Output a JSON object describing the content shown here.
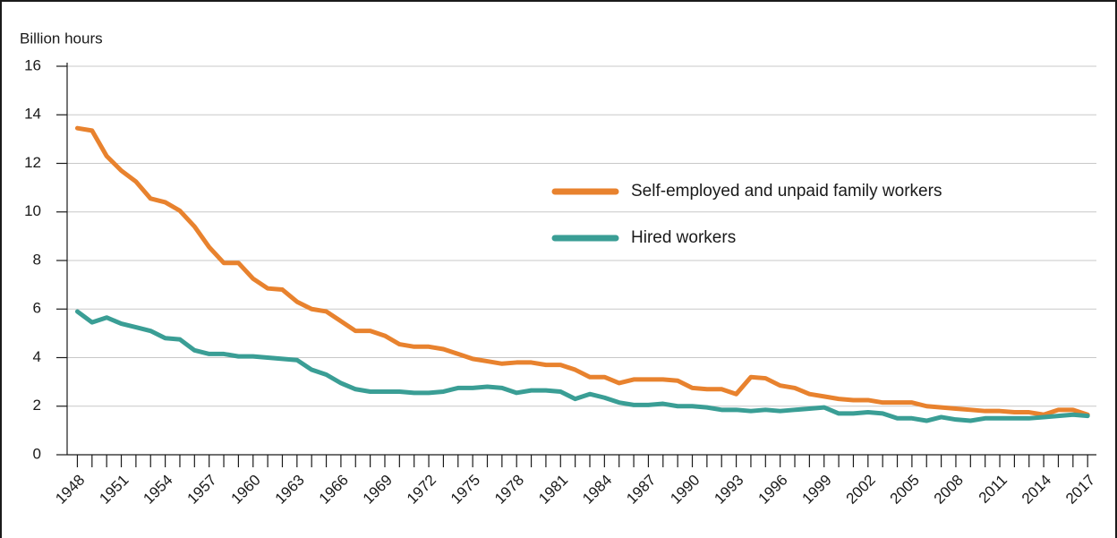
{
  "chart_data": {
    "type": "line",
    "y_label": "Billion hours",
    "x": [
      1948,
      1949,
      1950,
      1951,
      1952,
      1953,
      1954,
      1955,
      1956,
      1957,
      1958,
      1959,
      1960,
      1961,
      1962,
      1963,
      1964,
      1965,
      1966,
      1967,
      1968,
      1969,
      1970,
      1971,
      1972,
      1973,
      1974,
      1975,
      1976,
      1977,
      1978,
      1979,
      1980,
      1981,
      1982,
      1983,
      1984,
      1985,
      1986,
      1987,
      1988,
      1989,
      1990,
      1991,
      1992,
      1993,
      1994,
      1995,
      1996,
      1997,
      1998,
      1999,
      2000,
      2001,
      2002,
      2003,
      2004,
      2005,
      2006,
      2007,
      2008,
      2009,
      2010,
      2011,
      2012,
      2013,
      2014,
      2015,
      2016,
      2017
    ],
    "series": [
      {
        "name": "Self-employed and unpaid family workers",
        "color": "#e8822e",
        "values": [
          13.45,
          13.35,
          12.3,
          11.7,
          11.25,
          10.55,
          10.4,
          10.05,
          9.4,
          8.55,
          7.9,
          7.9,
          7.25,
          6.85,
          6.8,
          6.3,
          6.0,
          5.9,
          5.5,
          5.1,
          5.1,
          4.9,
          4.55,
          4.45,
          4.45,
          4.35,
          4.15,
          3.95,
          3.85,
          3.75,
          3.8,
          3.8,
          3.7,
          3.7,
          3.5,
          3.2,
          3.2,
          2.95,
          3.1,
          3.1,
          3.1,
          3.05,
          2.75,
          2.7,
          2.7,
          2.5,
          3.2,
          3.15,
          2.85,
          2.75,
          2.5,
          2.4,
          2.3,
          2.25,
          2.25,
          2.15,
          2.15,
          2.15,
          2.0,
          1.95,
          1.9,
          1.85,
          1.8,
          1.8,
          1.75,
          1.75,
          1.65,
          1.85,
          1.85,
          1.65
        ]
      },
      {
        "name": "Hired workers",
        "color": "#3a9e95",
        "values": [
          5.9,
          5.45,
          5.65,
          5.4,
          5.25,
          5.1,
          4.8,
          4.75,
          4.3,
          4.15,
          4.15,
          4.05,
          4.05,
          4.0,
          3.95,
          3.9,
          3.5,
          3.3,
          2.95,
          2.7,
          2.6,
          2.6,
          2.6,
          2.55,
          2.55,
          2.6,
          2.75,
          2.75,
          2.8,
          2.75,
          2.55,
          2.65,
          2.65,
          2.6,
          2.3,
          2.5,
          2.35,
          2.15,
          2.05,
          2.05,
          2.1,
          2.0,
          2.0,
          1.95,
          1.85,
          1.85,
          1.8,
          1.85,
          1.8,
          1.85,
          1.9,
          1.95,
          1.7,
          1.7,
          1.75,
          1.7,
          1.5,
          1.5,
          1.4,
          1.55,
          1.45,
          1.4,
          1.5,
          1.5,
          1.5,
          1.5,
          1.55,
          1.6,
          1.65,
          1.6
        ]
      }
    ],
    "xlim": [
      1947.3,
      2017.6
    ],
    "xticks": [
      1948,
      1951,
      1954,
      1957,
      1960,
      1963,
      1966,
      1969,
      1972,
      1975,
      1978,
      1981,
      1984,
      1987,
      1990,
      1993,
      1996,
      1999,
      2002,
      2005,
      2008,
      2011,
      2014,
      2017
    ],
    "ylim": [
      0,
      16
    ],
    "yticks": [
      0,
      2,
      4,
      6,
      8,
      10,
      12,
      14,
      16
    ],
    "grid": true
  }
}
